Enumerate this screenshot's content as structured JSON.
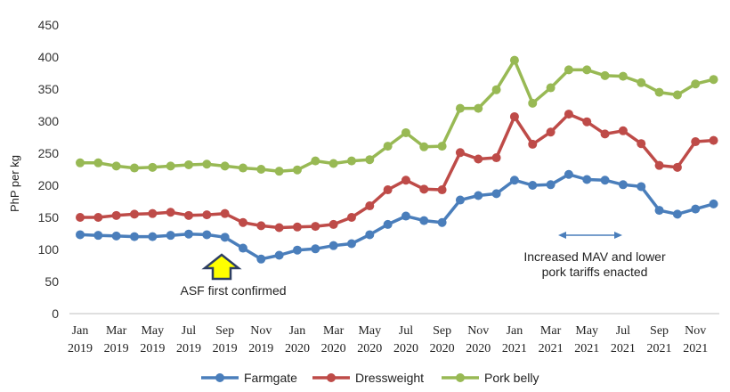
{
  "chart_data": {
    "type": "line",
    "ylabel": "PhP per kg",
    "ylim": [
      0,
      450
    ],
    "yticks": [
      0,
      50,
      100,
      150,
      200,
      250,
      300,
      350,
      400,
      450
    ],
    "grid": false,
    "legend_position": "bottom",
    "tick_labels": [
      {
        "month": "Jan",
        "year": "2019"
      },
      {
        "month": "Mar",
        "year": "2019"
      },
      {
        "month": "May",
        "year": "2019"
      },
      {
        "month": "Jul",
        "year": "2019"
      },
      {
        "month": "Sep",
        "year": "2019"
      },
      {
        "month": "Nov",
        "year": "2019"
      },
      {
        "month": "Jan",
        "year": "2020"
      },
      {
        "month": "Mar",
        "year": "2020"
      },
      {
        "month": "May",
        "year": "2020"
      },
      {
        "month": "Jul",
        "year": "2020"
      },
      {
        "month": "Sep",
        "year": "2020"
      },
      {
        "month": "Nov",
        "year": "2020"
      },
      {
        "month": "Jan",
        "year": "2021"
      },
      {
        "month": "Mar",
        "year": "2021"
      },
      {
        "month": "May",
        "year": "2021"
      },
      {
        "month": "Jul",
        "year": "2021"
      },
      {
        "month": "Sep",
        "year": "2021"
      },
      {
        "month": "Nov",
        "year": "2021"
      }
    ],
    "x": [
      "2019-01",
      "2019-02",
      "2019-03",
      "2019-04",
      "2019-05",
      "2019-06",
      "2019-07",
      "2019-08",
      "2019-09",
      "2019-10",
      "2019-11",
      "2019-12",
      "2020-01",
      "2020-02",
      "2020-03",
      "2020-04",
      "2020-05",
      "2020-06",
      "2020-07",
      "2020-08",
      "2020-09",
      "2020-10",
      "2020-11",
      "2020-12",
      "2021-01",
      "2021-02",
      "2021-03",
      "2021-04",
      "2021-05",
      "2021-06",
      "2021-07",
      "2021-08",
      "2021-09",
      "2021-10",
      "2021-11",
      "2021-12"
    ],
    "series": [
      {
        "name": "Farmgate",
        "color": "#4a7ebb",
        "values": [
          123,
          122,
          121,
          120,
          120,
          122,
          124,
          123,
          119,
          102,
          85,
          91,
          99,
          101,
          106,
          109,
          123,
          139,
          152,
          145,
          142,
          177,
          184,
          187,
          208,
          200,
          201,
          217,
          209,
          208,
          201,
          198,
          161,
          155,
          163,
          171
        ]
      },
      {
        "name": "Dressweight",
        "color": "#be4b48",
        "values": [
          150,
          150,
          153,
          155,
          156,
          158,
          153,
          154,
          156,
          142,
          137,
          134,
          135,
          136,
          139,
          150,
          168,
          193,
          208,
          194,
          193,
          251,
          241,
          243,
          307,
          264,
          283,
          311,
          299,
          280,
          285,
          265,
          231,
          228,
          268,
          270
        ]
      },
      {
        "name": "Pork belly",
        "color": "#98b954",
        "values": [
          235,
          235,
          230,
          227,
          228,
          230,
          232,
          233,
          230,
          227,
          225,
          222,
          224,
          238,
          234,
          238,
          240,
          261,
          282,
          260,
          261,
          320,
          320,
          349,
          395,
          328,
          352,
          380,
          380,
          371,
          370,
          360,
          345,
          341,
          358,
          365
        ]
      }
    ],
    "annotations": [
      {
        "text": "ASF first confirmed",
        "arrow": "up",
        "arrow_color": "#ffff00",
        "date": "2019-09"
      },
      {
        "lines": [
          "Increased MAV and lower",
          "pork tariffs enacted"
        ],
        "arrow": "double-horizontal",
        "from": "2021-04",
        "to": "2021-07"
      }
    ]
  }
}
